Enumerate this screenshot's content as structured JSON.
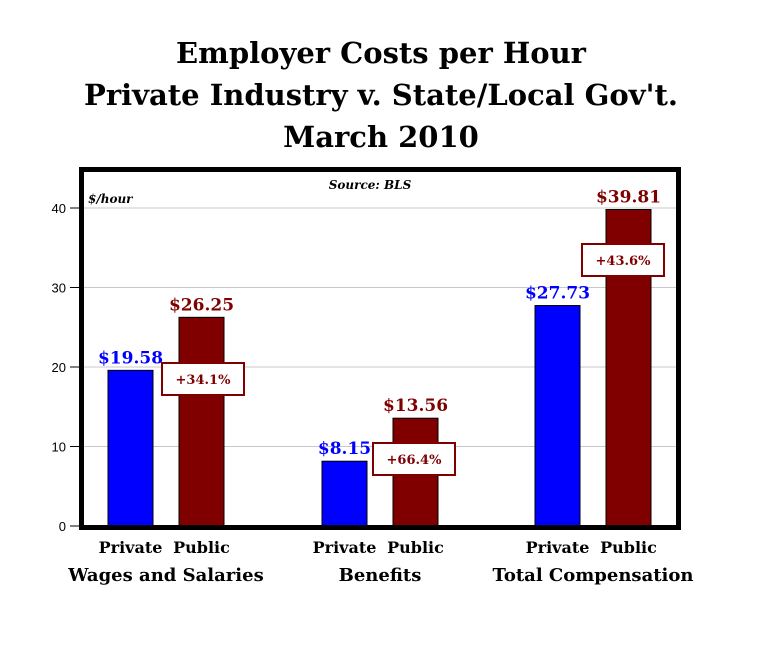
{
  "chart_data": {
    "type": "bar",
    "title": [
      "Employer Costs per Hour",
      "Private Industry v. State/Local Gov't.",
      "March 2010"
    ],
    "source": "Source: BLS",
    "ylabel": "$/hour",
    "ylim": [
      0,
      45
    ],
    "yticks": [
      0,
      10,
      20,
      30,
      40
    ],
    "grid": true,
    "groups": [
      "Wages and Salaries",
      "Benefits",
      "Total Compensation"
    ],
    "series": [
      {
        "name": "Private",
        "color": "#0000ff",
        "values": [
          19.58,
          8.15,
          27.73
        ],
        "labels": [
          "$19.58",
          "$8.15",
          "$27.73"
        ]
      },
      {
        "name": "Public",
        "color": "#800000",
        "values": [
          26.25,
          13.56,
          39.81
        ],
        "labels": [
          "$26.25",
          "$13.56",
          "$39.81"
        ]
      }
    ],
    "pct_diff": [
      "+34.1%",
      "+66.4%",
      "+43.6%"
    ]
  }
}
